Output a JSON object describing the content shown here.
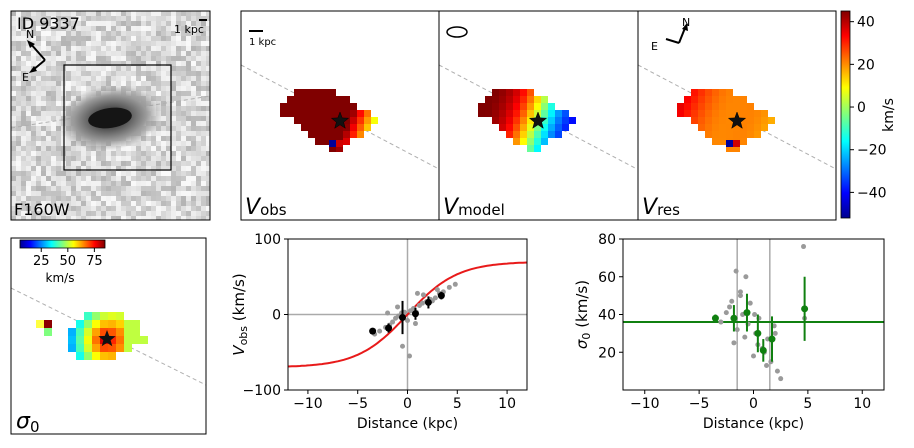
{
  "object": {
    "id": "ID 9337",
    "filter": "F160W",
    "scale_label": "1 kpc"
  },
  "compass": {
    "n": "N",
    "e": "E"
  },
  "velocity_panels": {
    "titles": [
      {
        "main": "V",
        "sub": "obs"
      },
      {
        "main": "V",
        "sub": "model"
      },
      {
        "main": "V",
        "sub": "res"
      }
    ],
    "scale_label": "1 kpc"
  },
  "colorbar_velocity": {
    "ticks": [
      "40",
      "20",
      "0",
      "−20",
      "−40"
    ],
    "label": "km/s",
    "range": [
      -52,
      45
    ]
  },
  "colorbar_sigma": {
    "ticks": [
      "25",
      "50",
      "75"
    ],
    "label": "km/s",
    "range": [
      5,
      85
    ]
  },
  "sigma_panel": {
    "label_main": "σ",
    "label_sub": "0"
  },
  "colors": {
    "curve": "#e81a1a",
    "sigma_fit": "#108010",
    "points_grey": "#9a9a9a",
    "axis_lines": "#aaaaaa"
  },
  "chart_data": [
    {
      "type": "scatter",
      "title": "",
      "xlabel": "Distance (kpc)",
      "ylabel_main": "V",
      "ylabel_sub": "obs",
      "ylabel_tail": " (km/s)",
      "xlim": [
        -12,
        12
      ],
      "ylim": [
        -100,
        100
      ],
      "xticks": [
        "−10",
        "−5",
        "0",
        "5",
        "10"
      ],
      "yticks": [
        "100",
        "0",
        "−100"
      ],
      "model_curve": {
        "vmax": 70,
        "rt": 5
      },
      "spaxels": {
        "x": [
          -3.3,
          -2.8,
          -2.2,
          -1.8,
          -1.5,
          -1.2,
          -0.9,
          -0.6,
          -0.3,
          0.0,
          0.3,
          0.6,
          0.9,
          1.2,
          1.5,
          1.9,
          2.3,
          2.8,
          3.2,
          3.6,
          4.2,
          4.8,
          -2.0,
          -0.5,
          0.2,
          1.6,
          3.0,
          -1.0,
          0.8,
          2.5,
          1.0
        ],
        "y": [
          -26,
          -22,
          -17,
          -14,
          -10,
          -5,
          -2,
          2,
          3,
          -8,
          5,
          8,
          3,
          12,
          15,
          17,
          20,
          22,
          28,
          30,
          36,
          40,
          2,
          -42,
          -55,
          26,
          33,
          10,
          -12,
          18,
          28
        ]
      },
      "binned": [
        {
          "x": -3.5,
          "y": -22,
          "err": 2
        },
        {
          "x": -1.9,
          "y": -18,
          "err": 6
        },
        {
          "x": -0.5,
          "y": -4,
          "err": 22
        },
        {
          "x": 0.8,
          "y": 1,
          "err": 8
        },
        {
          "x": 2.1,
          "y": 16,
          "err": 8
        },
        {
          "x": 3.4,
          "y": 25,
          "err": 5
        }
      ]
    },
    {
      "type": "scatter",
      "title": "",
      "xlabel": "Distance (kpc)",
      "ylabel_main": "σ",
      "ylabel_sub": "0",
      "ylabel_tail": " (km/s)",
      "xlim": [
        -12,
        12
      ],
      "ylim": [
        0,
        80
      ],
      "xticks": [
        "−10",
        "−5",
        "0",
        "5",
        "10"
      ],
      "yticks": [
        "80",
        "60",
        "40",
        "20"
      ],
      "sigma0_fit": 36,
      "vlines": [
        -1.5,
        1.5
      ],
      "spaxels": {
        "x": [
          -3.5,
          -3.0,
          -2.5,
          -2.0,
          -1.8,
          -1.5,
          -1.2,
          -1.0,
          -0.8,
          -0.5,
          -0.3,
          0.0,
          0.2,
          0.5,
          0.8,
          1.0,
          1.3,
          1.6,
          1.9,
          2.2,
          -2.2,
          -0.7,
          0.4,
          1.2,
          2.5,
          -1.6,
          0.1,
          4.6,
          4.7,
          2.0,
          -1.2
        ],
        "y": [
          38,
          36,
          41,
          47,
          25,
          32,
          52,
          40,
          28,
          35,
          46,
          18,
          30,
          38,
          22,
          20,
          27,
          15,
          34,
          10,
          44,
          60,
          24,
          13,
          6,
          63,
          40,
          76,
          38,
          30,
          50
        ]
      },
      "binned": [
        {
          "x": -3.5,
          "y": 38,
          "err": 2
        },
        {
          "x": -1.8,
          "y": 38,
          "err": 7
        },
        {
          "x": -0.6,
          "y": 41,
          "err": 10
        },
        {
          "x": 0.4,
          "y": 30,
          "err": 10
        },
        {
          "x": 0.9,
          "y": 21,
          "err": 6
        },
        {
          "x": 1.7,
          "y": 27,
          "err": 12
        },
        {
          "x": 4.7,
          "y": 43,
          "err": 17
        }
      ]
    }
  ]
}
